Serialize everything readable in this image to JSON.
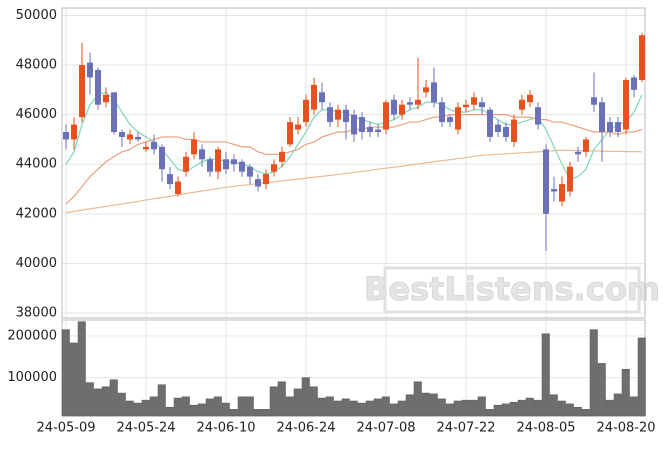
{
  "chart_data": [
    {
      "type": "candlestick",
      "watermark": "BestListens.com",
      "up_color": "#e8501e",
      "down_color": "#6b70b8",
      "open": [
        45300,
        45000,
        45900,
        48100,
        47800,
        46500,
        46900,
        45300,
        45000,
        45100,
        44600,
        44900,
        44700,
        43600,
        42800,
        43700,
        44400,
        44600,
        44200,
        43700,
        44200,
        44200,
        44100,
        43900,
        43400,
        43200,
        43700,
        44100,
        44800,
        45400,
        45700,
        46200,
        46900,
        46300,
        45800,
        46200,
        46000,
        45900,
        45500,
        45400,
        45400,
        46600,
        46000,
        46500,
        46400,
        46900,
        47300,
        46500,
        45900,
        45400,
        46300,
        46400,
        46500,
        46200,
        45600,
        45500,
        44900,
        46200,
        46500,
        46300,
        44600,
        43000,
        42500,
        42900,
        44500,
        44500,
        46700,
        46500,
        45700,
        45700,
        45400,
        47500,
        47400
      ],
      "high": [
        45600,
        45900,
        48900,
        48500,
        47900,
        47100,
        46900,
        45400,
        45400,
        45300,
        44900,
        45200,
        44800,
        43900,
        43500,
        44500,
        45300,
        44800,
        44300,
        44700,
        44500,
        44400,
        44200,
        44000,
        43600,
        43800,
        44200,
        44700,
        45900,
        45900,
        46800,
        47500,
        47300,
        46500,
        46400,
        46400,
        46200,
        46100,
        45700,
        45600,
        46600,
        46800,
        46600,
        46700,
        48300,
        47400,
        47900,
        46700,
        46000,
        46500,
        46600,
        46900,
        46700,
        46300,
        45800,
        45700,
        46000,
        46800,
        47000,
        46500,
        44800,
        43500,
        43500,
        44100,
        44700,
        45100,
        47700,
        46700,
        45900,
        45900,
        47500,
        47600,
        49300
      ],
      "low": [
        44600,
        44600,
        45700,
        46800,
        46200,
        46300,
        45200,
        44700,
        44800,
        44900,
        44500,
        44400,
        43300,
        43000,
        42700,
        43500,
        44200,
        43900,
        43500,
        43400,
        43600,
        43700,
        43500,
        43200,
        42900,
        43000,
        43500,
        43900,
        44700,
        45200,
        45500,
        46000,
        46200,
        45500,
        45500,
        45000,
        44900,
        45000,
        45100,
        45100,
        45200,
        45800,
        45800,
        46200,
        46200,
        46700,
        46300,
        45500,
        45500,
        45200,
        46100,
        46200,
        46000,
        44900,
        45100,
        44900,
        44700,
        46000,
        46300,
        45400,
        40500,
        42500,
        42300,
        42700,
        44100,
        44300,
        46100,
        44100,
        45100,
        45100,
        45200,
        46700,
        47300
      ],
      "close": [
        45000,
        45600,
        48000,
        47500,
        46400,
        46800,
        45300,
        45100,
        45200,
        45000,
        44700,
        44600,
        43800,
        43200,
        43300,
        44300,
        45000,
        44200,
        43700,
        44600,
        43800,
        44000,
        43700,
        43500,
        43100,
        43600,
        44000,
        44500,
        45700,
        45600,
        46600,
        47200,
        46500,
        45700,
        46200,
        45700,
        45200,
        45300,
        45300,
        45300,
        46500,
        46000,
        46400,
        46400,
        46600,
        47100,
        46500,
        45700,
        45700,
        46300,
        46400,
        46700,
        46300,
        45100,
        45300,
        45100,
        45800,
        46600,
        46800,
        45600,
        42000,
        42900,
        43200,
        43900,
        44400,
        45000,
        46400,
        45300,
        45300,
        45300,
        47400,
        47000,
        49200
      ],
      "series": [
        {
          "color": "#7fd6b5",
          "values": [
            44000,
            44500,
            45600,
            46400,
            46800,
            46900,
            46600,
            46100,
            45600,
            45300,
            45100,
            44900,
            44600,
            44200,
            43800,
            43700,
            43900,
            44100,
            44200,
            44200,
            44100,
            44100,
            44000,
            43900,
            43700,
            43600,
            43700,
            43900,
            44300,
            44800,
            45300,
            45900,
            46200,
            46200,
            46100,
            46100,
            45900,
            45800,
            45700,
            45600,
            45700,
            45800,
            46000,
            46200,
            46300,
            46500,
            46500,
            46400,
            46200,
            46100,
            46100,
            46200,
            46200,
            46000,
            45800,
            45600,
            45600,
            45700,
            45800,
            45900,
            45400,
            44700,
            44000,
            43400,
            43500,
            43800,
            44600,
            45000,
            45400,
            45600,
            45700,
            46100,
            46800
          ]
        },
        {
          "color": "#e8a080",
          "values": [
            42400,
            42700,
            43100,
            43500,
            43800,
            44100,
            44300,
            44500,
            44600,
            44800,
            44900,
            45000,
            45100,
            45100,
            45100,
            45000,
            45000,
            44900,
            44900,
            44900,
            44900,
            44800,
            44700,
            44700,
            44500,
            44400,
            44400,
            44400,
            44500,
            44600,
            44800,
            44900,
            45100,
            45200,
            45300,
            45300,
            45400,
            45400,
            45500,
            45500,
            45500,
            45500,
            45600,
            45700,
            45700,
            45800,
            45900,
            45900,
            46000,
            46000,
            46000,
            46000,
            46000,
            46000,
            46000,
            46000,
            45900,
            45900,
            45900,
            45800,
            45800,
            45700,
            45700,
            45600,
            45500,
            45400,
            45300,
            45300,
            45300,
            45200,
            45300,
            45300,
            45400
          ]
        },
        {
          "color": "#e8bb95",
          "values": [
            42050,
            42100,
            42150,
            42200,
            42250,
            42300,
            42350,
            42400,
            42450,
            42500,
            42560,
            42610,
            42660,
            42710,
            42760,
            42820,
            42870,
            42920,
            42970,
            43020,
            43070,
            43110,
            43150,
            43180,
            43220,
            43260,
            43290,
            43330,
            43370,
            43400,
            43440,
            43480,
            43510,
            43550,
            43590,
            43630,
            43670,
            43710,
            43750,
            43800,
            43840,
            43880,
            43920,
            43970,
            44010,
            44060,
            44100,
            44140,
            44180,
            44230,
            44270,
            44320,
            44360,
            44380,
            44400,
            44420,
            44440,
            44460,
            44480,
            44500,
            44520,
            44550,
            44570,
            44560,
            44550,
            44540,
            44540,
            44530,
            44520,
            44520,
            44510,
            44510,
            44500
          ]
        }
      ],
      "ylim": [
        37800,
        50300
      ],
      "yticks": [
        38000,
        40000,
        42000,
        44000,
        46000,
        48000,
        50000
      ],
      "grid": true
    },
    {
      "type": "bar",
      "color": "#6e6e6e",
      "categories": [
        "24-05-09",
        null,
        null,
        null,
        null,
        null,
        null,
        null,
        null,
        null,
        "24-05-24",
        null,
        null,
        null,
        null,
        null,
        null,
        null,
        null,
        null,
        "24-06-10",
        null,
        null,
        null,
        null,
        null,
        null,
        null,
        null,
        null,
        "24-06-24",
        null,
        null,
        null,
        null,
        null,
        null,
        null,
        null,
        null,
        "24-07-08",
        null,
        null,
        null,
        null,
        null,
        null,
        null,
        null,
        null,
        "24-07-22",
        null,
        null,
        null,
        null,
        null,
        null,
        null,
        null,
        null,
        "24-08-05",
        null,
        null,
        null,
        null,
        null,
        null,
        null,
        null,
        null,
        "24-08-20",
        null,
        null
      ],
      "values": [
        215000,
        183000,
        234000,
        88000,
        73000,
        78000,
        95000,
        63000,
        44000,
        39000,
        46000,
        54000,
        83000,
        29000,
        51000,
        54000,
        34000,
        37000,
        49000,
        54000,
        39000,
        24000,
        54000,
        54000,
        24000,
        24000,
        78000,
        90000,
        54000,
        73000,
        100000,
        78000,
        51000,
        54000,
        44000,
        49000,
        44000,
        39000,
        44000,
        49000,
        54000,
        37000,
        44000,
        59000,
        90000,
        63000,
        61000,
        49000,
        37000,
        44000,
        46000,
        46000,
        54000,
        24000,
        34000,
        37000,
        41000,
        46000,
        51000,
        46000,
        205000,
        59000,
        44000,
        37000,
        29000,
        24000,
        215000,
        134000,
        46000,
        61000,
        120000,
        54000,
        195000
      ],
      "ylim": [
        8000,
        238000
      ],
      "yticks": [
        100000,
        200000
      ],
      "grid": true
    }
  ]
}
